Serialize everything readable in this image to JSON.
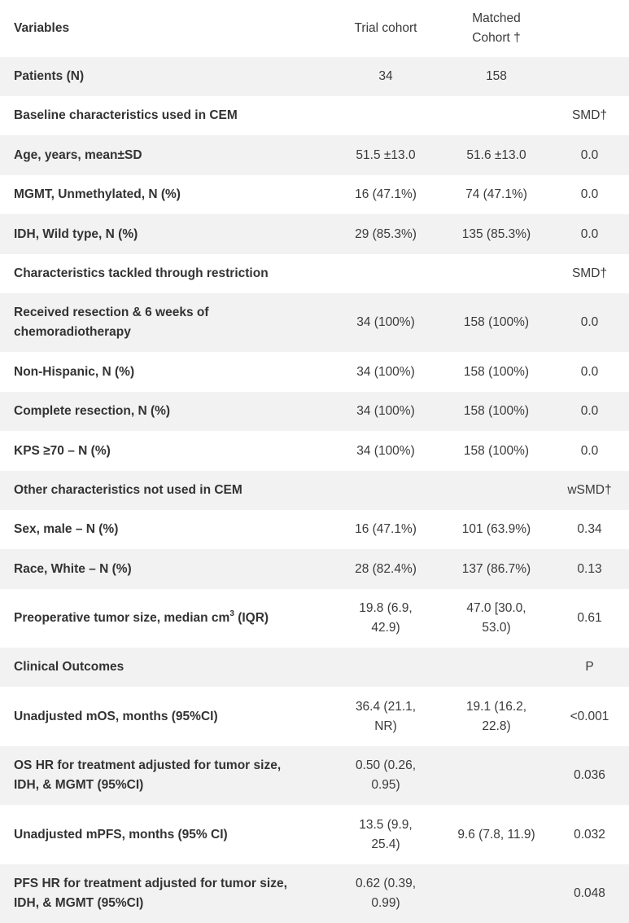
{
  "header": {
    "variables": "Variables",
    "trial": "Trial cohort",
    "matched": "Matched Cohort †"
  },
  "rows": {
    "patients": {
      "label": "Patients (N)",
      "trial": "34",
      "matched": "158"
    },
    "baseline_section": {
      "label": "Baseline characteristics used in CEM",
      "stat": "SMD†"
    },
    "age": {
      "label": "Age, years, mean±SD",
      "trial": "51.5 ±13.0",
      "matched": "51.6 ±13.0",
      "stat": "0.0"
    },
    "mgmt": {
      "label": "MGMT, Unmethylated, N (%)",
      "trial": "16 (47.1%)",
      "matched": "74 (47.1%)",
      "stat": "0.0"
    },
    "idh": {
      "label": "IDH, Wild type, N (%)",
      "trial": "29 (85.3%)",
      "matched": "135 (85.3%)",
      "stat": "0.0"
    },
    "restriction_section": {
      "label": "Characteristics tackled through restriction",
      "stat": "SMD†"
    },
    "resection_chemo": {
      "label": "Received resection & 6 weeks of chemoradiotherapy",
      "trial": "34 (100%)",
      "matched": "158 (100%)",
      "stat": "0.0"
    },
    "non_hispanic": {
      "label": "Non-Hispanic, N (%)",
      "trial": "34 (100%)",
      "matched": "158 (100%)",
      "stat": "0.0"
    },
    "complete_resection": {
      "label": "Complete resection, N (%)",
      "trial": "34 (100%)",
      "matched": "158 (100%)",
      "stat": "0.0"
    },
    "kps": {
      "label": "KPS ≥70 – N (%)",
      "trial": "34 (100%)",
      "matched": "158 (100%)",
      "stat": "0.0"
    },
    "other_section": {
      "label": "Other characteristics not used in CEM",
      "stat": "wSMD†"
    },
    "sex": {
      "label": "Sex, male – N (%)",
      "trial": "16 (47.1%)",
      "matched": "101 (63.9%)",
      "stat": "0.34"
    },
    "race": {
      "label": "Race, White – N (%)",
      "trial": "28 (82.4%)",
      "matched": "137 (86.7%)",
      "stat": "0.13"
    },
    "tumor_size": {
      "label_pre": "Preoperative tumor size, median cm",
      "label_sup": "3",
      "label_post": " (IQR)",
      "trial": "19.8 (6.9, 42.9)",
      "matched": "47.0 [30.0, 53.0)",
      "stat": "0.61"
    },
    "outcomes_section": {
      "label": "Clinical Outcomes",
      "stat": "P"
    },
    "mos": {
      "label": "Unadjusted mOS, months (95%CI)",
      "trial": "36.4 (21.1, NR)",
      "matched": "19.1 (16.2, 22.8)",
      "stat": "<0.001"
    },
    "os_hr": {
      "label": "OS HR for treatment adjusted for tumor size, IDH, & MGMT (95%CI)",
      "trial": "0.50 (0.26, 0.95)",
      "matched": "",
      "stat": "0.036"
    },
    "mpfs": {
      "label": "Unadjusted mPFS, months (95% CI)",
      "trial": "13.5 (9.9, 25.4)",
      "matched": "9.6 (7.8, 11.9)",
      "stat": "0.032"
    },
    "pfs_hr": {
      "label": "PFS HR for treatment adjusted for tumor size, IDH, & MGMT (95%CI)",
      "trial": "0.62 (0.39, 0.99)",
      "matched": "",
      "stat": "0.048"
    }
  }
}
